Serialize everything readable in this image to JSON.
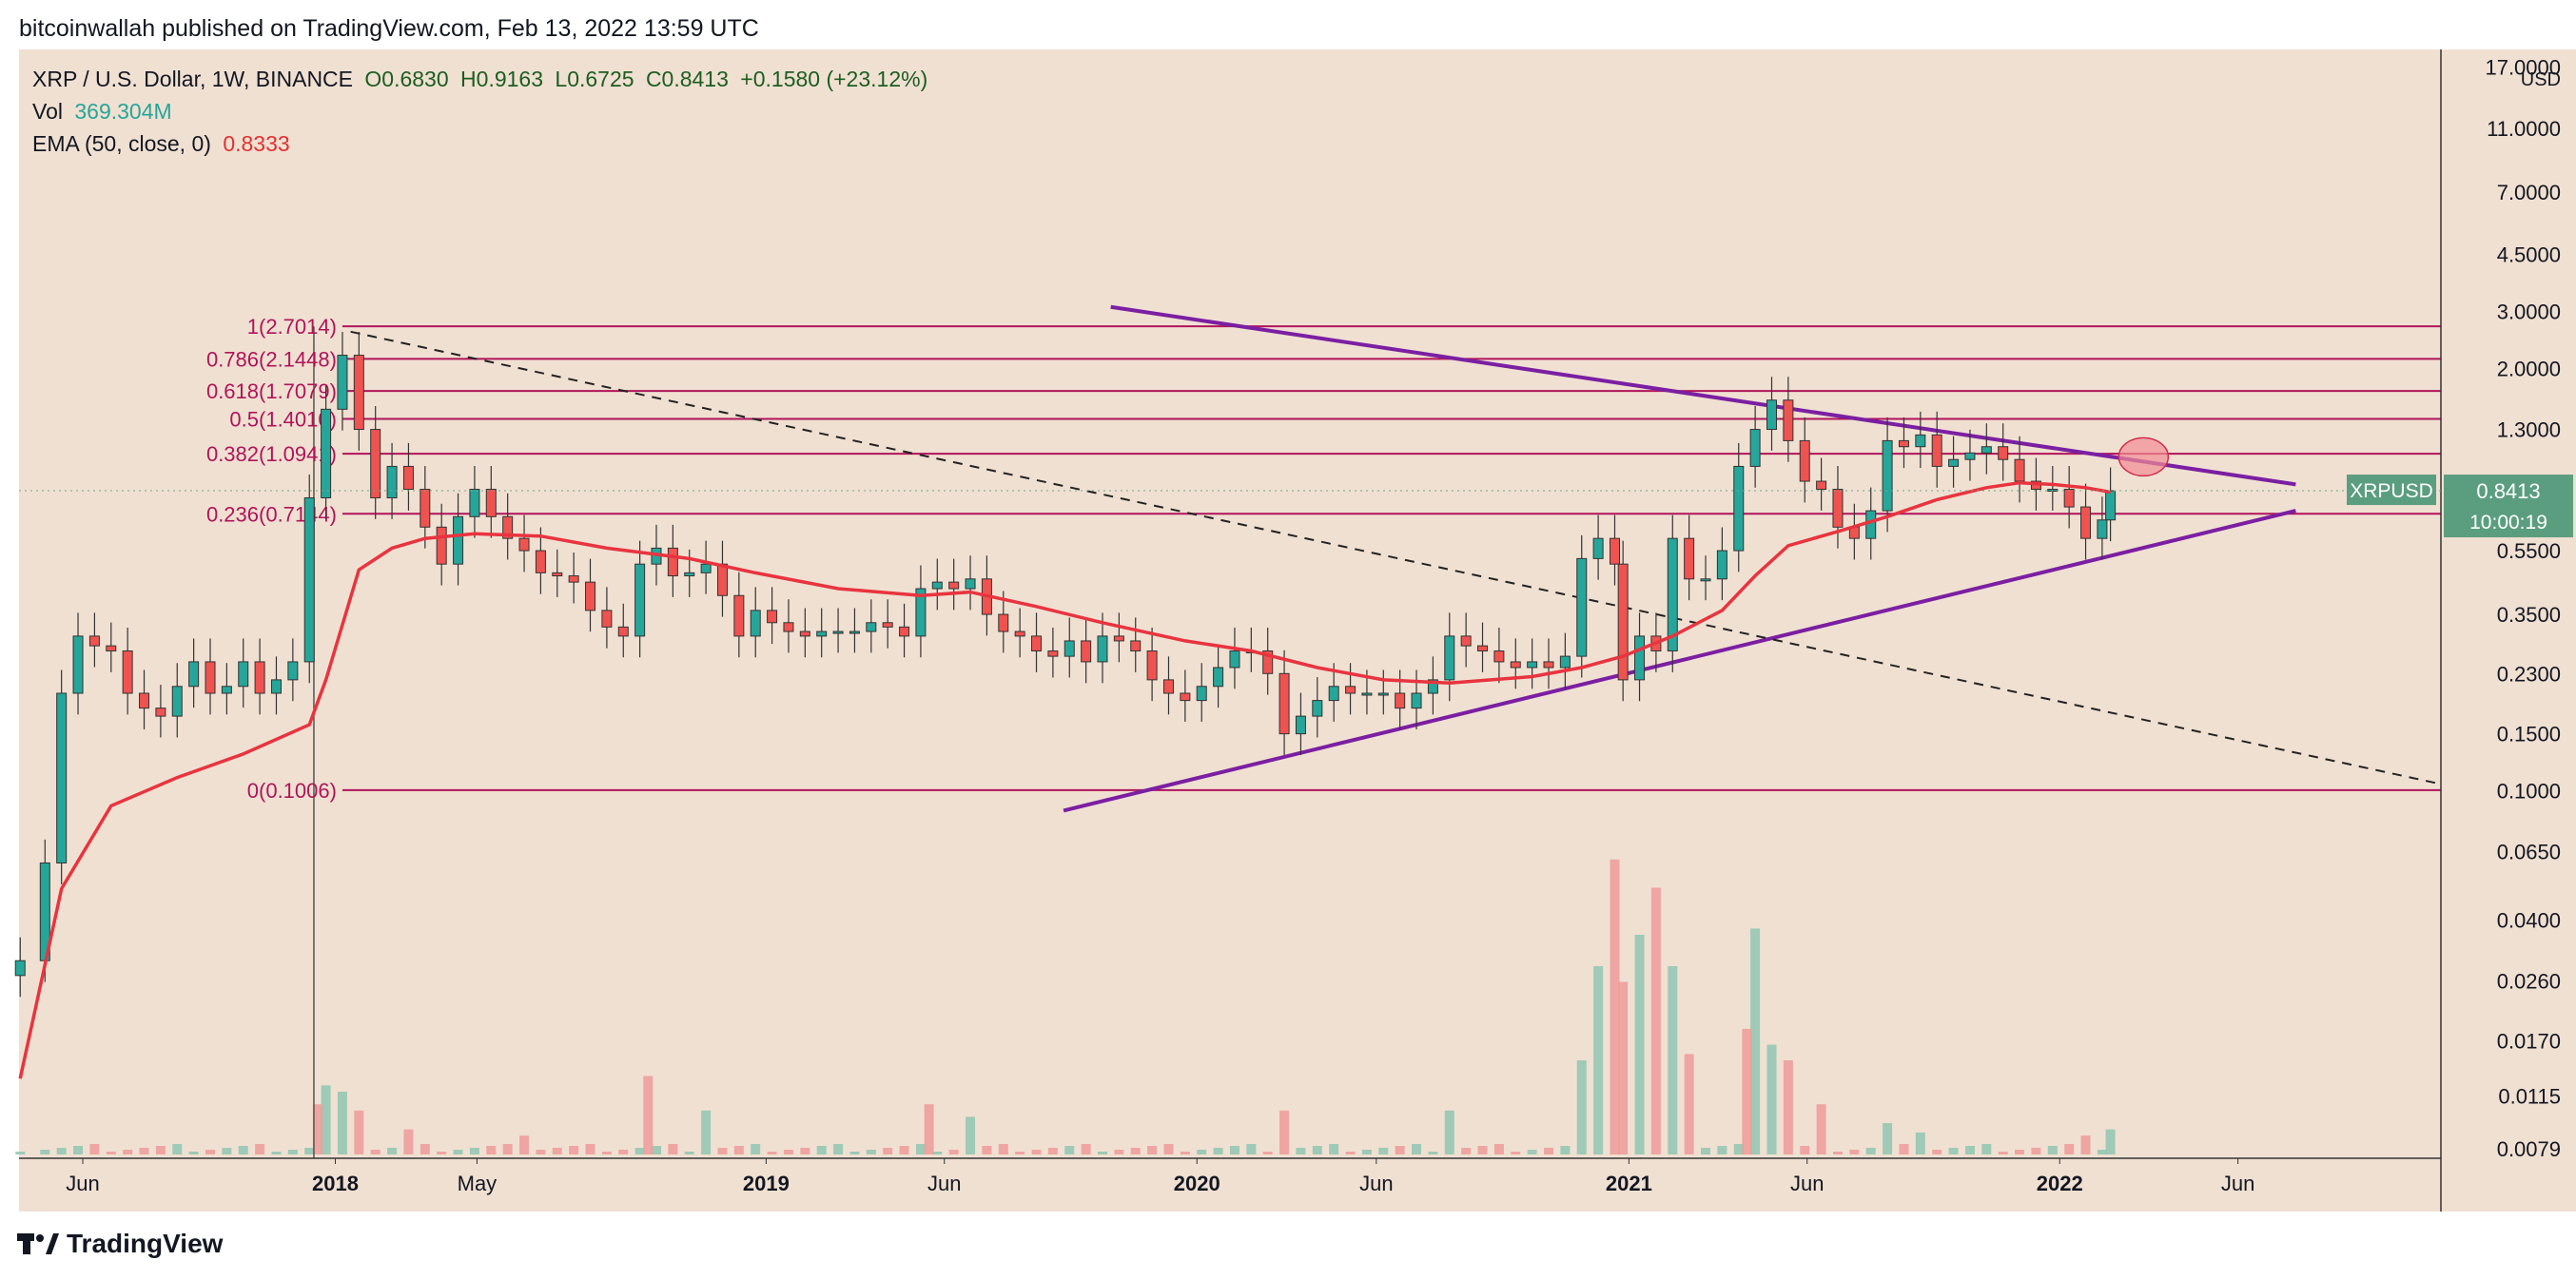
{
  "header": {
    "publish_line": "bitcoinwallah published on TradingView.com, Feb 13, 2022 13:59 UTC"
  },
  "legend": {
    "symbol": "XRP / U.S. Dollar, 1W, BINANCE",
    "open": "O0.6830",
    "high": "H0.9163",
    "low": "L0.6725",
    "close": "C0.8413",
    "change": "+0.1580 (+23.12%)",
    "vol_label": "Vol",
    "vol_value": "369.304M",
    "ema_label": "EMA (50, close, 0)",
    "ema_value": "0.8333"
  },
  "footer": {
    "brand": "TradingView"
  },
  "colors": {
    "background": "#f0e0d2",
    "up": "#26a69a",
    "down": "#ef5350",
    "ema": "#e8343f",
    "fib": "#b0145a",
    "trendline": "#7b1fa2",
    "price_tag": "#5b9e7f"
  },
  "chart_data": {
    "type": "candlestick",
    "symbol": "XRPUSD",
    "scale": "log",
    "currency": "USD",
    "ylim": [
      0.0079,
      18
    ],
    "y_ticks": [
      "17.0000",
      "11.0000",
      "7.0000",
      "4.5000",
      "3.0000",
      "2.0000",
      "1.3000",
      "0.8413",
      "0.5500",
      "0.3500",
      "0.2300",
      "0.1500",
      "0.1000",
      "0.0650",
      "0.0400",
      "0.0260",
      "0.0170",
      "0.0115",
      "0.0079"
    ],
    "y_tick_values": [
      17,
      11,
      7,
      4.5,
      3,
      2,
      1.3,
      0.8413,
      0.55,
      0.35,
      0.23,
      0.15,
      0.1,
      0.065,
      0.04,
      0.026,
      0.017,
      0.0115,
      0.0079
    ],
    "x_ticks": [
      "Jun",
      "2018",
      "May",
      "2019",
      "Jun",
      "2020",
      "Jun",
      "2021",
      "Jun",
      "2022",
      "Jun"
    ],
    "x_tick_dates": [
      "2017-06-01",
      "2018-01-01",
      "2018-05-01",
      "2019-01-01",
      "2019-06-01",
      "2020-01-01",
      "2020-06-01",
      "2021-01-01",
      "2021-06-01",
      "2022-01-01",
      "2022-06-01"
    ],
    "x_range": [
      "2017-04-08",
      "2022-11-20"
    ],
    "price_tag": {
      "symbol": "XRPUSD",
      "value": "0.8413",
      "countdown": "10:00:19"
    },
    "fib_levels": [
      {
        "label": "1(2.7014)",
        "value": 2.7014
      },
      {
        "label": "0.786(2.1448)",
        "value": 2.1448
      },
      {
        "label": "0.618(1.7079)",
        "value": 1.7079
      },
      {
        "label": "0.5(1.4010)",
        "value": 1.401
      },
      {
        "label": "0.382(1.0941)",
        "value": 1.0941
      },
      {
        "label": "0.236(0.7144)",
        "value": 0.7144
      },
      {
        "label": "0(0.1006)",
        "value": 0.1006
      }
    ],
    "fib_start": "2018-01-07",
    "weekly_close": [
      [
        "2017-04-09",
        0.03
      ],
      [
        "2017-04-30",
        0.06
      ],
      [
        "2017-05-14",
        0.2
      ],
      [
        "2017-05-28",
        0.3
      ],
      [
        "2017-06-11",
        0.28
      ],
      [
        "2017-06-25",
        0.27
      ],
      [
        "2017-07-09",
        0.2
      ],
      [
        "2017-07-23",
        0.18
      ],
      [
        "2017-08-06",
        0.17
      ],
      [
        "2017-08-20",
        0.21
      ],
      [
        "2017-09-03",
        0.25
      ],
      [
        "2017-09-17",
        0.2
      ],
      [
        "2017-10-01",
        0.21
      ],
      [
        "2017-10-15",
        0.25
      ],
      [
        "2017-10-29",
        0.2
      ],
      [
        "2017-11-12",
        0.22
      ],
      [
        "2017-11-26",
        0.25
      ],
      [
        "2017-12-10",
        0.8
      ],
      [
        "2017-12-24",
        1.5
      ],
      [
        "2018-01-07",
        2.2
      ],
      [
        "2018-01-21",
        1.3
      ],
      [
        "2018-02-04",
        0.8
      ],
      [
        "2018-02-18",
        1.0
      ],
      [
        "2018-03-04",
        0.85
      ],
      [
        "2018-03-18",
        0.65
      ],
      [
        "2018-04-01",
        0.5
      ],
      [
        "2018-04-15",
        0.7
      ],
      [
        "2018-04-29",
        0.85
      ],
      [
        "2018-05-13",
        0.7
      ],
      [
        "2018-05-27",
        0.6
      ],
      [
        "2018-06-10",
        0.55
      ],
      [
        "2018-06-24",
        0.47
      ],
      [
        "2018-07-08",
        0.46
      ],
      [
        "2018-07-22",
        0.44
      ],
      [
        "2018-08-05",
        0.36
      ],
      [
        "2018-08-19",
        0.32
      ],
      [
        "2018-09-02",
        0.3
      ],
      [
        "2018-09-16",
        0.5
      ],
      [
        "2018-09-30",
        0.56
      ],
      [
        "2018-10-14",
        0.46
      ],
      [
        "2018-10-28",
        0.47
      ],
      [
        "2018-11-11",
        0.5
      ],
      [
        "2018-11-25",
        0.4
      ],
      [
        "2018-12-09",
        0.3
      ],
      [
        "2018-12-23",
        0.36
      ],
      [
        "2019-01-06",
        0.33
      ],
      [
        "2019-01-20",
        0.31
      ],
      [
        "2019-02-03",
        0.3
      ],
      [
        "2019-02-17",
        0.31
      ],
      [
        "2019-03-03",
        0.31
      ],
      [
        "2019-03-17",
        0.31
      ],
      [
        "2019-03-31",
        0.33
      ],
      [
        "2019-04-14",
        0.32
      ],
      [
        "2019-04-28",
        0.3
      ],
      [
        "2019-05-12",
        0.42
      ],
      [
        "2019-05-26",
        0.44
      ],
      [
        "2019-06-09",
        0.42
      ],
      [
        "2019-06-23",
        0.45
      ],
      [
        "2019-07-07",
        0.35
      ],
      [
        "2019-07-21",
        0.31
      ],
      [
        "2019-08-04",
        0.3
      ],
      [
        "2019-08-18",
        0.27
      ],
      [
        "2019-09-01",
        0.26
      ],
      [
        "2019-09-15",
        0.29
      ],
      [
        "2019-09-29",
        0.25
      ],
      [
        "2019-10-13",
        0.3
      ],
      [
        "2019-10-27",
        0.29
      ],
      [
        "2019-11-10",
        0.27
      ],
      [
        "2019-11-24",
        0.22
      ],
      [
        "2019-12-08",
        0.2
      ],
      [
        "2019-12-22",
        0.19
      ],
      [
        "2020-01-05",
        0.21
      ],
      [
        "2020-01-19",
        0.24
      ],
      [
        "2020-02-02",
        0.27
      ],
      [
        "2020-02-16",
        0.27
      ],
      [
        "2020-03-01",
        0.23
      ],
      [
        "2020-03-15",
        0.15
      ],
      [
        "2020-03-29",
        0.17
      ],
      [
        "2020-04-12",
        0.19
      ],
      [
        "2020-04-26",
        0.21
      ],
      [
        "2020-05-10",
        0.2
      ],
      [
        "2020-05-24",
        0.2
      ],
      [
        "2020-06-07",
        0.2
      ],
      [
        "2020-06-21",
        0.18
      ],
      [
        "2020-07-05",
        0.2
      ],
      [
        "2020-07-19",
        0.22
      ],
      [
        "2020-08-02",
        0.3
      ],
      [
        "2020-08-16",
        0.28
      ],
      [
        "2020-08-30",
        0.27
      ],
      [
        "2020-09-13",
        0.25
      ],
      [
        "2020-09-27",
        0.24
      ],
      [
        "2020-10-11",
        0.25
      ],
      [
        "2020-10-25",
        0.24
      ],
      [
        "2020-11-08",
        0.26
      ],
      [
        "2020-11-22",
        0.52
      ],
      [
        "2020-12-06",
        0.6
      ],
      [
        "2020-12-20",
        0.5
      ],
      [
        "2020-12-27",
        0.22
      ],
      [
        "2021-01-10",
        0.3
      ],
      [
        "2021-01-24",
        0.27
      ],
      [
        "2021-02-07",
        0.6
      ],
      [
        "2021-02-21",
        0.45
      ],
      [
        "2021-03-07",
        0.45
      ],
      [
        "2021-03-21",
        0.55
      ],
      [
        "2021-04-04",
        1.0
      ],
      [
        "2021-04-18",
        1.3
      ],
      [
        "2021-05-02",
        1.6
      ],
      [
        "2021-05-16",
        1.2
      ],
      [
        "2021-05-30",
        0.9
      ],
      [
        "2021-06-13",
        0.85
      ],
      [
        "2021-06-27",
        0.65
      ],
      [
        "2021-07-11",
        0.6
      ],
      [
        "2021-07-25",
        0.73
      ],
      [
        "2021-08-08",
        1.2
      ],
      [
        "2021-08-22",
        1.15
      ],
      [
        "2021-09-05",
        1.25
      ],
      [
        "2021-09-19",
        1.0
      ],
      [
        "2021-10-03",
        1.05
      ],
      [
        "2021-10-17",
        1.1
      ],
      [
        "2021-10-31",
        1.15
      ],
      [
        "2021-11-14",
        1.05
      ],
      [
        "2021-11-28",
        0.9
      ],
      [
        "2021-12-12",
        0.85
      ],
      [
        "2021-12-26",
        0.85
      ],
      [
        "2022-01-09",
        0.75
      ],
      [
        "2022-01-23",
        0.6
      ],
      [
        "2022-02-06",
        0.6839
      ],
      [
        "2022-02-13",
        0.8413
      ]
    ],
    "ema50": [
      [
        "2017-04-09",
        0.013
      ],
      [
        "2017-05-14",
        0.05
      ],
      [
        "2017-06-25",
        0.09
      ],
      [
        "2017-08-20",
        0.11
      ],
      [
        "2017-10-15",
        0.13
      ],
      [
        "2017-12-10",
        0.16
      ],
      [
        "2017-12-24",
        0.22
      ],
      [
        "2018-01-21",
        0.48
      ],
      [
        "2018-02-18",
        0.56
      ],
      [
        "2018-03-18",
        0.6
      ],
      [
        "2018-04-29",
        0.62
      ],
      [
        "2018-06-24",
        0.61
      ],
      [
        "2018-08-19",
        0.56
      ],
      [
        "2018-10-28",
        0.52
      ],
      [
        "2018-12-23",
        0.47
      ],
      [
        "2019-03-03",
        0.42
      ],
      [
        "2019-05-12",
        0.4
      ],
      [
        "2019-06-23",
        0.41
      ],
      [
        "2019-08-18",
        0.37
      ],
      [
        "2019-10-13",
        0.33
      ],
      [
        "2019-12-22",
        0.29
      ],
      [
        "2020-02-16",
        0.27
      ],
      [
        "2020-04-12",
        0.24
      ],
      [
        "2020-06-07",
        0.22
      ],
      [
        "2020-08-02",
        0.215
      ],
      [
        "2020-10-11",
        0.225
      ],
      [
        "2020-11-22",
        0.24
      ],
      [
        "2020-12-27",
        0.26
      ],
      [
        "2021-02-07",
        0.3
      ],
      [
        "2021-03-21",
        0.36
      ],
      [
        "2021-04-18",
        0.46
      ],
      [
        "2021-05-16",
        0.57
      ],
      [
        "2021-06-27",
        0.63
      ],
      [
        "2021-08-08",
        0.7
      ],
      [
        "2021-09-19",
        0.79
      ],
      [
        "2021-10-31",
        0.86
      ],
      [
        "2021-11-28",
        0.89
      ],
      [
        "2021-12-26",
        0.88
      ],
      [
        "2022-01-23",
        0.86
      ],
      [
        "2022-02-13",
        0.8333
      ]
    ],
    "volume_max": 1.0,
    "volume_relative": [
      [
        "2017-12-17",
        0.16
      ],
      [
        "2017-12-24",
        0.22
      ],
      [
        "2018-01-07",
        0.2
      ],
      [
        "2018-01-21",
        0.14
      ],
      [
        "2018-03-04",
        0.08
      ],
      [
        "2018-06-10",
        0.06
      ],
      [
        "2018-09-23",
        0.25
      ],
      [
        "2018-11-11",
        0.14
      ],
      [
        "2019-05-19",
        0.16
      ],
      [
        "2019-06-23",
        0.12
      ],
      [
        "2020-03-15",
        0.14
      ],
      [
        "2020-08-02",
        0.14
      ],
      [
        "2020-11-22",
        0.3
      ],
      [
        "2020-12-06",
        0.6
      ],
      [
        "2020-12-20",
        0.94
      ],
      [
        "2020-12-27",
        0.55
      ],
      [
        "2021-01-10",
        0.7
      ],
      [
        "2021-01-24",
        0.85
      ],
      [
        "2021-02-07",
        0.6
      ],
      [
        "2021-02-21",
        0.32
      ],
      [
        "2021-04-11",
        0.4
      ],
      [
        "2021-04-18",
        0.72
      ],
      [
        "2021-05-02",
        0.35
      ],
      [
        "2021-05-16",
        0.3
      ],
      [
        "2021-06-13",
        0.16
      ],
      [
        "2021-08-08",
        0.1
      ],
      [
        "2021-09-05",
        0.07
      ],
      [
        "2022-01-23",
        0.06
      ],
      [
        "2022-02-13",
        0.08
      ]
    ],
    "annotations": [
      "descending trendline",
      "ascending trendline",
      "dashed downtrend",
      "highlight ellipse"
    ]
  }
}
